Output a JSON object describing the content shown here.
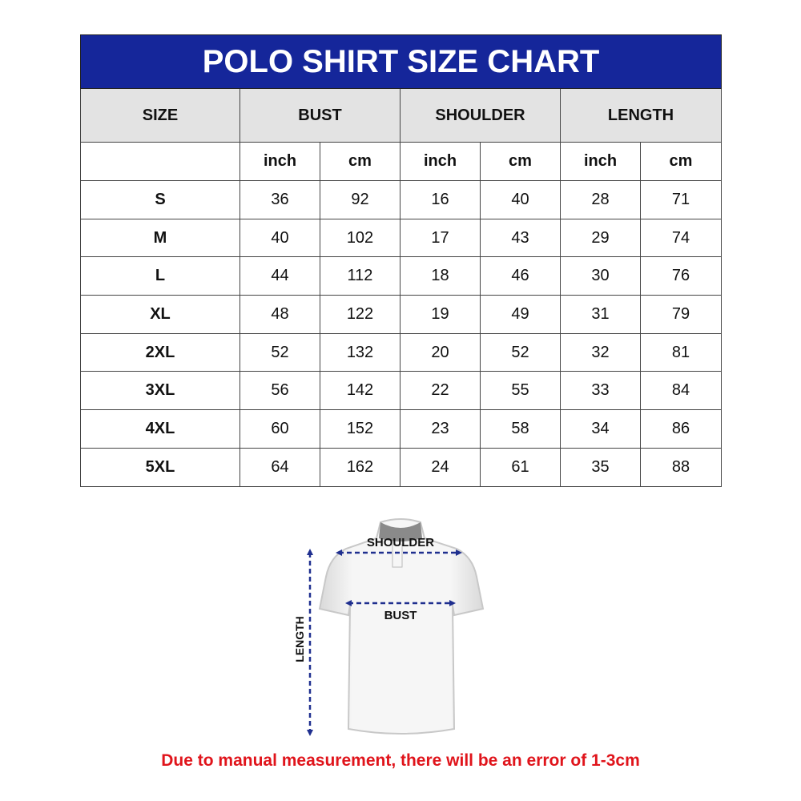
{
  "title": "POLO SHIRT SIZE CHART",
  "headers": [
    "SIZE",
    "BUST",
    "SHOULDER",
    "LENGTH"
  ],
  "units": [
    "inch",
    "cm",
    "inch",
    "cm",
    "inch",
    "cm"
  ],
  "rows": [
    {
      "size": "S",
      "values": [
        "36",
        "92",
        "16",
        "40",
        "28",
        "71"
      ]
    },
    {
      "size": "M",
      "values": [
        "40",
        "102",
        "17",
        "43",
        "29",
        "74"
      ]
    },
    {
      "size": "L",
      "values": [
        "44",
        "112",
        "18",
        "46",
        "30",
        "76"
      ]
    },
    {
      "size": "XL",
      "values": [
        "48",
        "122",
        "19",
        "49",
        "31",
        "79"
      ]
    },
    {
      "size": "2XL",
      "values": [
        "52",
        "132",
        "20",
        "52",
        "32",
        "81"
      ]
    },
    {
      "size": "3XL",
      "values": [
        "56",
        "142",
        "22",
        "55",
        "33",
        "84"
      ]
    },
    {
      "size": "4XL",
      "values": [
        "60",
        "152",
        "23",
        "58",
        "34",
        "86"
      ]
    },
    {
      "size": "5XL",
      "values": [
        "64",
        "162",
        "24",
        "61",
        "35",
        "88"
      ]
    }
  ],
  "diagram": {
    "shoulder_label": "SHOULDER",
    "bust_label": "BUST",
    "length_label": "LENGTH"
  },
  "note": "Due to manual measurement, there will be an error of 1-3cm",
  "colors": {
    "title_bg": "#15269a",
    "header_bg": "#e3e3e3",
    "note": "#e0141b",
    "arrows": "#1f2f8f"
  }
}
